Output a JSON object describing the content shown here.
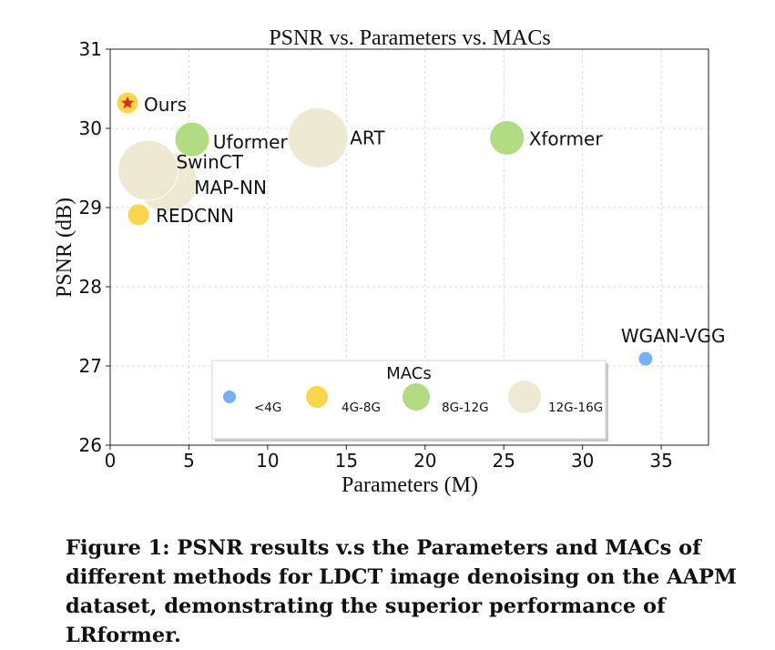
{
  "chart_data": {
    "type": "scatter",
    "title": "PSNR vs. Parameters vs. MACs",
    "xlabel": "Parameters (M)",
    "ylabel": "PSNR (dB)",
    "xlim": [
      0,
      38
    ],
    "ylim": [
      26,
      31
    ],
    "xticks": [
      "0",
      "5",
      "10",
      "15",
      "20",
      "25",
      "30",
      "35"
    ],
    "yticks": [
      "26",
      "27",
      "28",
      "29",
      "30",
      "31"
    ],
    "grid": true,
    "legend": {
      "title": "MACs",
      "placement": "lower-center",
      "entries": [
        {
          "label": "<4G",
          "color": "#6aa9f4",
          "size": 1
        },
        {
          "label": "4G-8G",
          "color": "#fcd33b",
          "size": 2
        },
        {
          "label": "8G-12G",
          "color": "#abd977",
          "size": 3
        },
        {
          "label": "12G-16G",
          "color": "#ede7cf",
          "size": 4
        }
      ]
    },
    "points": [
      {
        "label": "Ours",
        "x": 1.1,
        "y": 30.32,
        "mac_class": "4G-8G",
        "marker": "star",
        "star_color": "#e3261b"
      },
      {
        "label": "Uformer",
        "x": 5.2,
        "y": 29.86,
        "mac_class": "8G-12G"
      },
      {
        "label": "ART",
        "x": 13.2,
        "y": 29.88,
        "mac_class": "12G-16G"
      },
      {
        "label": "Xformer",
        "x": 25.2,
        "y": 29.88,
        "mac_class": "8G-12G"
      },
      {
        "label": "SwinCT",
        "x": 2.4,
        "y": 29.47,
        "mac_class": "12G-16G"
      },
      {
        "label": "MAP-NN",
        "x": 3.6,
        "y": 29.32,
        "mac_class": "12G-16G"
      },
      {
        "label": "REDCNN",
        "x": 1.8,
        "y": 28.91,
        "mac_class": "4G-8G"
      },
      {
        "label": "WGAN-VGG",
        "x": 34.0,
        "y": 27.09,
        "mac_class": "<4G"
      }
    ]
  },
  "caption": "Figure 1: PSNR results v.s the Parameters and MACs of different methods for LDCT image denoising on the AAPM dataset, demonstrating the superior performance of LRformer."
}
